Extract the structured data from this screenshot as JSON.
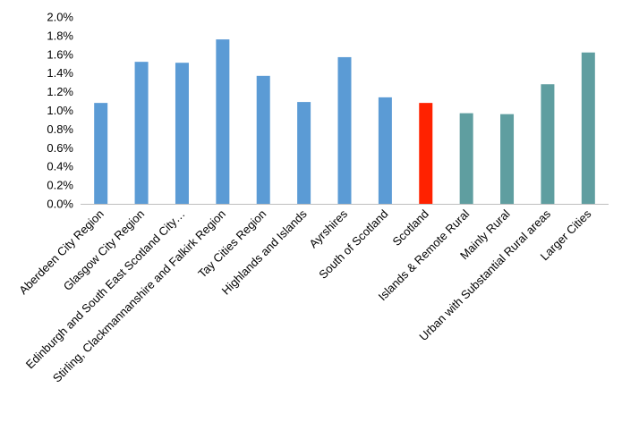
{
  "chart_data": {
    "type": "bar",
    "title": "",
    "xlabel": "",
    "ylabel": "",
    "ylim": [
      0,
      0.02
    ],
    "yticks": [
      0,
      0.002,
      0.004,
      0.006,
      0.008,
      0.01,
      0.012,
      0.014,
      0.016,
      0.018,
      0.02
    ],
    "ytick_labels": [
      "0.0%",
      "0.2%",
      "0.4%",
      "0.6%",
      "0.8%",
      "1.0%",
      "1.2%",
      "1.4%",
      "1.6%",
      "1.8%",
      "2.0%"
    ],
    "grid": false,
    "legend": "none",
    "categories": [
      "Aberdeen City Region",
      "Glasgow City Region",
      "Edinburgh and South East Scotland City…",
      "Stirling, Clackmannanshire and Falkirk Region",
      "Tay Cities Region",
      "Highlands and Islands",
      "Ayrshires",
      "South of Scotland",
      "Scotland",
      "Islands & Remote Rural",
      "Mainly Rural",
      "Urban with Substantial Rural areas",
      "Larger Cities"
    ],
    "values": [
      0.0108,
      0.0152,
      0.0151,
      0.0176,
      0.0137,
      0.0109,
      0.0157,
      0.0114,
      0.0108,
      0.0097,
      0.0096,
      0.0128,
      0.0162
    ],
    "colors": [
      "#5B9BD5",
      "#5B9BD5",
      "#5B9BD5",
      "#5B9BD5",
      "#5B9BD5",
      "#5B9BD5",
      "#5B9BD5",
      "#5B9BD5",
      "#FF2200",
      "#5F9EA0",
      "#5F9EA0",
      "#5F9EA0",
      "#5F9EA0"
    ]
  }
}
